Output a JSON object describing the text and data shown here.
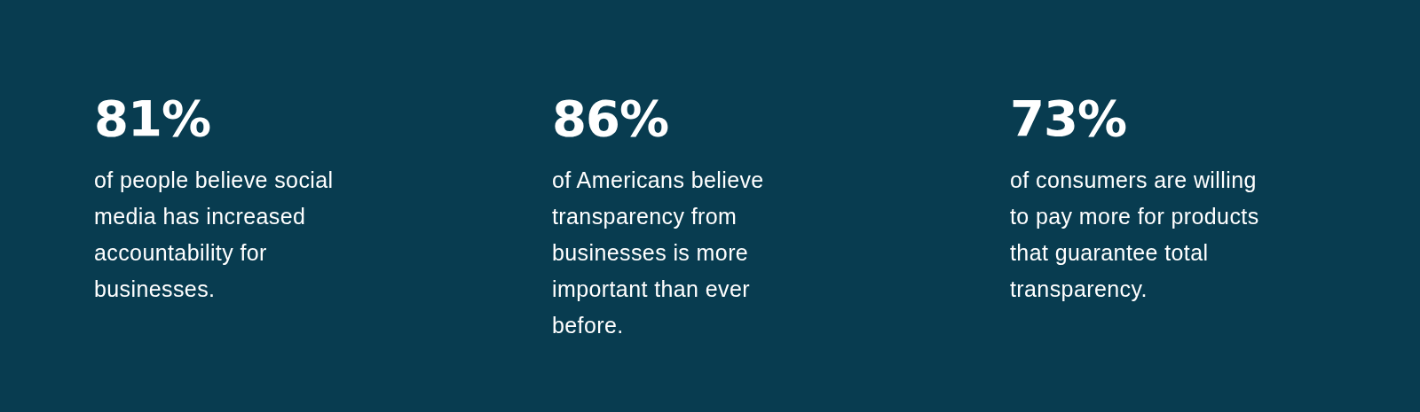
{
  "chart_data": {
    "type": "other",
    "categories": [
      "of people believe social\nmedia has increased\naccountability for\nbusinesses.",
      "of Americans believe\ntransparency from\nbusinesses is more\nimportant than ever\nbefore.",
      "of consumers are willing\nto pay more for products\nthat guarantee total\ntransparency."
    ],
    "values": [
      81,
      86,
      73
    ],
    "value_labels": [
      "81%",
      "86%",
      "73%"
    ],
    "color": "#ffffff"
  }
}
